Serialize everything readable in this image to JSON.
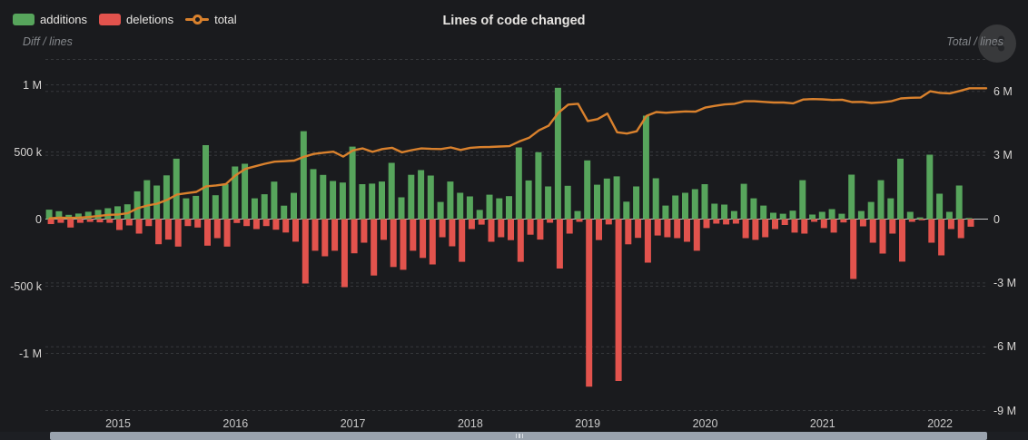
{
  "header": {
    "title": "Lines of code changed",
    "legend": [
      {
        "label": "additions",
        "color": "#57a55c"
      },
      {
        "label": "deletions",
        "color": "#e2534d"
      },
      {
        "label": "total",
        "color": "#d9812d"
      }
    ],
    "left_axis_hint": "Diff / lines",
    "right_axis_hint": "Total / lines",
    "menu_button_icon": "share-icon"
  },
  "chart_data": {
    "type": "bar",
    "subtype": "monthly bars (additions up / deletions down) with cumulative total line on secondary right axis",
    "title": "Lines of code changed",
    "unit": "values_k are thousands of lines of code",
    "x_axis": {
      "start_month": "2014-06",
      "months": 95,
      "tick_labels": [
        "2015",
        "2016",
        "2017",
        "2018",
        "2019",
        "2020",
        "2021",
        "2022"
      ]
    },
    "left_axis": {
      "label": "Diff / lines",
      "tick_labels": [
        "1 M",
        "500 k",
        "0",
        "-500 k",
        "-1 M"
      ],
      "tick_values_k": [
        1000,
        500,
        0,
        -500,
        -1000
      ]
    },
    "right_axis": {
      "label": "Total / lines",
      "tick_labels": [
        "6 M",
        "3 M",
        "0",
        "-3 M",
        "-6 M",
        "-9 M"
      ],
      "tick_values_k": [
        6000,
        3000,
        0,
        -3000,
        -6000,
        -9000
      ]
    },
    "grid": "dashed horizontal gridlines, solid zero line",
    "legend_position": "top-left",
    "series": [
      {
        "name": "additions",
        "type": "bar",
        "axis": "left",
        "color": "#57a55c",
        "values_k": [
          70,
          59,
          32,
          41,
          55,
          68,
          81,
          95,
          110,
          207,
          290,
          250,
          326,
          450,
          155,
          173,
          551,
          178,
          261,
          392,
          412,
          155,
          185,
          279,
          100,
          195,
          655,
          372,
          329,
          284,
          272,
          540,
          260,
          264,
          280,
          419,
          162,
          330,
          365,
          324,
          128,
          280,
          196,
          169,
          68,
          182,
          155,
          171,
          534,
          288,
          498,
          243,
          978,
          248,
          60,
          437,
          256,
          302,
          318,
          130,
          243,
          770,
          304,
          101,
          176,
          196,
          223,
          260,
          115,
          108,
          60,
          263,
          155,
          101,
          47,
          40,
          63,
          290,
          34,
          54,
          74,
          40,
          331,
          60,
          128,
          290,
          155,
          450,
          54,
          13,
          480,
          189,
          54,
          250,
          8
        ]
      },
      {
        "name": "deletions",
        "type": "bar",
        "axis": "left",
        "color": "#e2534d",
        "values_k": [
          -37,
          -28,
          -63,
          -28,
          -21,
          -24,
          -28,
          -81,
          -47,
          -108,
          -52,
          -187,
          -153,
          -205,
          -52,
          -63,
          -198,
          -142,
          -205,
          -29,
          -52,
          -74,
          -52,
          -79,
          -100,
          -168,
          -480,
          -236,
          -277,
          -236,
          -507,
          -255,
          -176,
          -420,
          -155,
          -357,
          -378,
          -236,
          -289,
          -338,
          -135,
          -203,
          -318,
          -74,
          -41,
          -169,
          -135,
          -157,
          -318,
          -116,
          -153,
          -27,
          -368,
          -108,
          -20,
          -1248,
          -156,
          -40,
          -1206,
          -188,
          -140,
          -324,
          -122,
          -135,
          -142,
          -169,
          -236,
          -67,
          -34,
          -40,
          -34,
          -142,
          -155,
          -135,
          -74,
          -44,
          -101,
          -108,
          -20,
          -67,
          -101,
          -25,
          -446,
          -54,
          -176,
          -257,
          -108,
          -317,
          -20,
          -9,
          -176,
          -270,
          -74,
          -142,
          -57
        ]
      },
      {
        "name": "total",
        "type": "line",
        "axis": "right",
        "color": "#d9812d",
        "values_k": [
          35,
          65,
          55,
          70,
          100,
          145,
          200,
          215,
          280,
          512,
          640,
          725,
          900,
          1150,
          1220,
          1280,
          1540,
          1580,
          1640,
          2050,
          2360,
          2480,
          2600,
          2700,
          2720,
          2750,
          2930,
          3060,
          3120,
          3170,
          2940,
          3230,
          3320,
          3160,
          3290,
          3350,
          3140,
          3240,
          3320,
          3300,
          3290,
          3370,
          3250,
          3350,
          3380,
          3390,
          3410,
          3430,
          3650,
          3820,
          4170,
          4390,
          5000,
          5380,
          5420,
          4610,
          4700,
          4960,
          4080,
          4020,
          4130,
          4850,
          5030,
          5000,
          5030,
          5060,
          5050,
          5240,
          5320,
          5390,
          5420,
          5540,
          5540,
          5510,
          5480,
          5480,
          5440,
          5620,
          5640,
          5630,
          5600,
          5610,
          5500,
          5510,
          5460,
          5490,
          5540,
          5670,
          5700,
          5710,
          6010,
          5930,
          5910,
          6020,
          6150
        ]
      }
    ]
  },
  "scrollbar": {
    "coverage": "full-range horizontal data zoom",
    "grip": "center"
  }
}
